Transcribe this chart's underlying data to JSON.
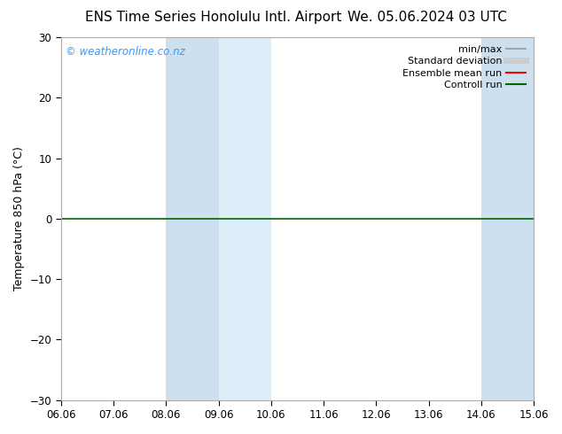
{
  "title_left": "ENS Time Series Honolulu Intl. Airport",
  "title_right": "We. 05.06.2024 03 UTC",
  "ylabel": "Temperature 850 hPa (°C)",
  "ylim": [
    -30,
    30
  ],
  "yticks": [
    -30,
    -20,
    -10,
    0,
    10,
    20,
    30
  ],
  "xtick_labels": [
    "06.06",
    "07.06",
    "08.06",
    "09.06",
    "10.06",
    "11.06",
    "12.06",
    "13.06",
    "14.06",
    "15.06"
  ],
  "watermark": "© weatheronline.co.nz",
  "watermark_color": "#3399ff",
  "background_color": "#ffffff",
  "plot_bg_color": "#ffffff",
  "shaded_bands": [
    {
      "xstart": 2.0,
      "xend": 3.0,
      "color": "#cce0f0"
    },
    {
      "xstart": 3.0,
      "xend": 4.0,
      "color": "#ddeef8"
    },
    {
      "xstart": 8.0,
      "xend": 9.0,
      "color": "#cce0f0"
    },
    {
      "xstart": 9.0,
      "xend": 9.5,
      "color": "#ddeef8"
    }
  ],
  "hline_y": 0,
  "hline_color": "#006600",
  "legend_entries": [
    {
      "label": "min/max",
      "color": "#999999",
      "lw": 1.2,
      "type": "line"
    },
    {
      "label": "Standard deviation",
      "color": "#cccccc",
      "lw": 5,
      "type": "line"
    },
    {
      "label": "Ensemble mean run",
      "color": "#ff0000",
      "lw": 1.5,
      "type": "line"
    },
    {
      "label": "Controll run",
      "color": "#006600",
      "lw": 1.5,
      "type": "line"
    }
  ],
  "title_fontsize": 11,
  "tick_fontsize": 8.5,
  "ylabel_fontsize": 9,
  "legend_fontsize": 8
}
